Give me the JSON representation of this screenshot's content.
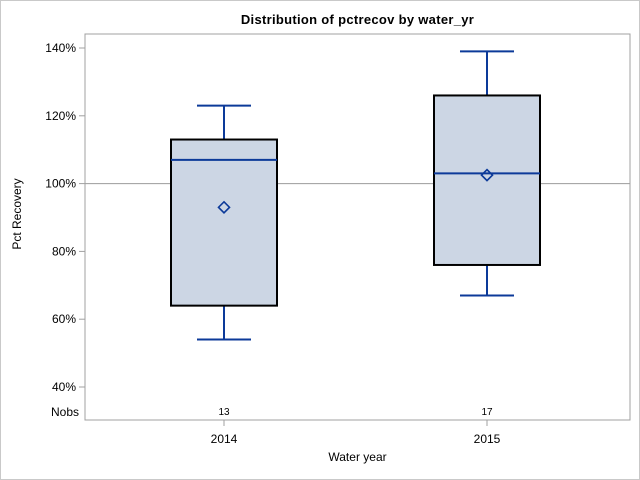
{
  "figure": {
    "background": "#ffffff",
    "border_color": "#c9c9c9"
  },
  "chart_data": {
    "type": "box",
    "title": "Distribution of pctrecov by water_yr",
    "xlabel": "Water year",
    "ylabel": "Pct Recovery",
    "nobs_label": "Nobs",
    "categories": [
      "2014",
      "2015"
    ],
    "y_ticks": [
      {
        "value": 140,
        "label": "140%"
      },
      {
        "value": 120,
        "label": "120%"
      },
      {
        "value": 100,
        "label": "100%"
      },
      {
        "value": 80,
        "label": "80%"
      },
      {
        "value": 60,
        "label": "60%"
      },
      {
        "value": 40,
        "label": "40%"
      }
    ],
    "ylim": [
      30,
      144
    ],
    "reference_line": 100,
    "grid": false,
    "legend": "none",
    "series": [
      {
        "category": "2014",
        "nobs": "13",
        "whisker_low": 54,
        "q1": 64,
        "median": 107,
        "mean": 93,
        "q3": 113,
        "whisker_high": 123
      },
      {
        "category": "2015",
        "nobs": "17",
        "whisker_low": 67,
        "q1": 76,
        "median": 103,
        "mean": 102.5,
        "q3": 126,
        "whisker_high": 139
      }
    ],
    "colors": {
      "box_fill": "#ccd6e4",
      "box_border": "#000000",
      "line_blue": "#0c3a99",
      "axis_frame": "#a0a0a0",
      "reference_line": "#9b9b9b",
      "text": "#000000"
    }
  }
}
